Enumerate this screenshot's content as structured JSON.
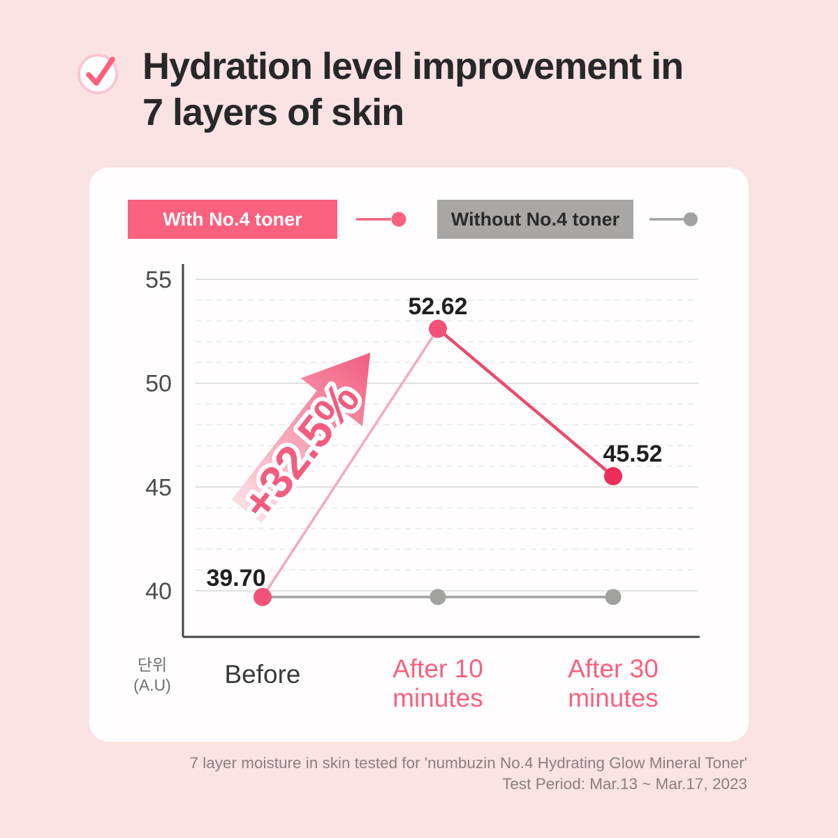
{
  "header": {
    "title_line1": "Hydration level improvement in",
    "title_line2": "7 layers of skin",
    "icon": "checkmark-circle"
  },
  "legend": [
    {
      "label": "With No.4 toner",
      "swatch_color": "#f9617f",
      "marker": "pink-line-dot"
    },
    {
      "label": "Without No.4 toner",
      "swatch_color": "#a9a6a6",
      "marker": "gray-line-dot"
    }
  ],
  "chart_data": {
    "type": "line",
    "categories": [
      [
        "Before"
      ],
      [
        "After 10",
        "minutes"
      ],
      [
        "After 30",
        "minutes"
      ]
    ],
    "series": [
      {
        "name": "With No.4 toner",
        "values": [
          39.7,
          52.62,
          45.52
        ],
        "labels": [
          "39.70",
          "52.62",
          "45.52"
        ],
        "color": "#e94b6e"
      },
      {
        "name": "Without No.4 toner",
        "values": [
          39.7,
          39.7,
          39.7
        ],
        "labels": [],
        "color": "#a3a0a0"
      }
    ],
    "yticks": [
      55,
      50,
      45,
      40
    ],
    "ylim": [
      37.8,
      55.7
    ],
    "unit_label": [
      "단위",
      "(A.U)"
    ],
    "annotation": "+32.5%",
    "grid": "solid major gridlines, dashed minor gridlines per unit",
    "legend_position": "top"
  },
  "colors": {
    "bg": "#fbe3e3",
    "card": "#fffdfd",
    "accent": "#f9617f",
    "line": "#e94b6e",
    "line-light": "#f5a9bb",
    "dot": "#f35179",
    "dot-deep": "#ee2d5a",
    "gray": "#a9a6a6",
    "gray-line": "#a3a0a0",
    "title": "#282828",
    "tick": "#4c4c4c",
    "label-dark": "#3a3a3a",
    "footer": "#8c7e7e",
    "grid": "#d6d6d6",
    "grid-minor": "#e7e7e7",
    "axis": "#454545",
    "value": "#1f1f1f",
    "unit": "#6f6f6f",
    "arrow-from": "#fcdde3",
    "arrow-to": "#f25c80",
    "legend-gray-text": "#2b2b2b"
  },
  "footer": {
    "line1": "7 layer moisture in skin tested for 'numbuzin No.4 Hydrating Glow Mineral Toner'",
    "line2": "Test Period: Mar.13 ~ Mar.17, 2023"
  }
}
